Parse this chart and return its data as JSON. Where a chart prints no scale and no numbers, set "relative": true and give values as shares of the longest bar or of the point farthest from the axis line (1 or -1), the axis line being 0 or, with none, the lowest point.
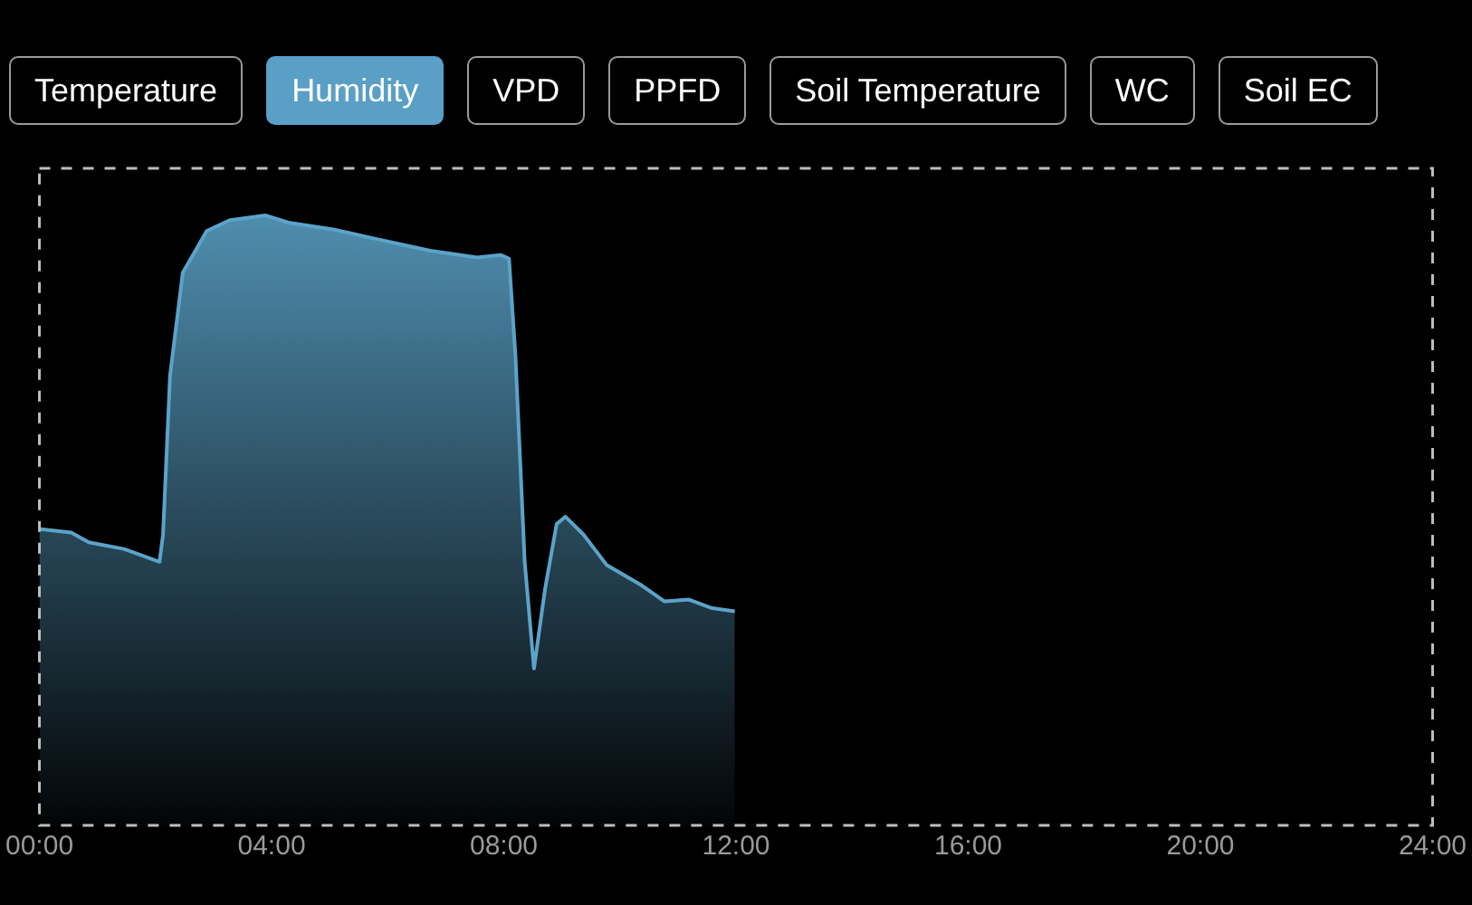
{
  "chart_data": {
    "type": "area",
    "relative": true,
    "annotations": [
      "Temperature",
      "Humidity",
      "VPD",
      "PPFD",
      "Soil Temperature",
      "WC",
      "Soil EC"
    ],
    "x": [
      0,
      0.55,
      0.85,
      1.46,
      2.07,
      2.13,
      2.25,
      2.47,
      2.88,
      3.28,
      3.89,
      4.29,
      5.11,
      5.72,
      6.73,
      7.54,
      7.95,
      8.09,
      8.2,
      8.36,
      8.52,
      8.71,
      8.91,
      9.06,
      9.37,
      9.77,
      10.38,
      10.77,
      11.19,
      11.59,
      11.98
    ],
    "series": [
      {
        "color": "#5ba3c9",
        "values": [
          0.486,
          0.48,
          0.464,
          0.453,
          0.432,
          0.477,
          0.737,
          0.906,
          0.974,
          0.992,
          1,
          0.988,
          0.976,
          0.963,
          0.942,
          0.931,
          0.935,
          0.929,
          0.771,
          0.432,
          0.257,
          0.387,
          0.494,
          0.506,
          0.477,
          0.427,
          0.393,
          0.367,
          0.37,
          0.356,
          0.351
        ]
      }
    ],
    "xlim": [
      0,
      24
    ],
    "xticks": [
      {
        "value": 0,
        "label": "00:00"
      },
      {
        "value": 4,
        "label": "04:00"
      },
      {
        "value": 8,
        "label": "08:00"
      },
      {
        "value": 12,
        "label": "12:00"
      },
      {
        "value": 16,
        "label": "16:00"
      },
      {
        "value": 20,
        "label": "20:00"
      },
      {
        "value": 24,
        "label": "24:00"
      }
    ],
    "grid": false,
    "legend": false,
    "marker": "none",
    "line_style": "solid"
  }
}
